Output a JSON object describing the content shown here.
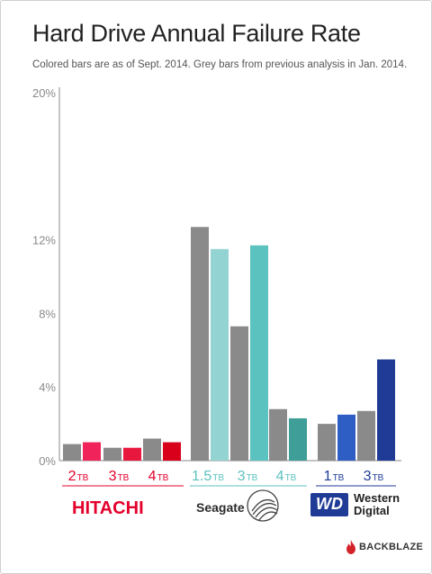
{
  "title": "Hard Drive Annual Failure Rate",
  "subtitle": "Colored bars are as of Sept. 2014. Grey bars from previous analysis in Jan. 2014.",
  "brands": {
    "hitachi": "HITACHI",
    "seagate": "Seagate",
    "wd_logo": "WD",
    "wd_name_line1": "Western",
    "wd_name_line2": "Digital",
    "backblaze": "BACKBLAZE"
  },
  "colors": {
    "grey": "#8a8a8a",
    "hitachi": "#e4002b",
    "seagate": "#5cc2bf",
    "wd": "#1f3b96",
    "axis": "#888888"
  },
  "chart_data": {
    "type": "bar",
    "title": "Hard Drive Annual Failure Rate",
    "subtitle": "Colored bars are as of Sept. 2014. Grey bars from previous analysis in Jan. 2014.",
    "ylim": [
      0,
      20
    ],
    "y_ticks": [
      {
        "value": 0,
        "label": "0%"
      },
      {
        "value": 4,
        "label": "4%"
      },
      {
        "value": 8,
        "label": "8%"
      },
      {
        "value": 12,
        "label": "12%"
      },
      {
        "value": 20,
        "label": "20%"
      }
    ],
    "grid": false,
    "groups": [
      {
        "brand": "HITACHI",
        "color_key": "hitachi",
        "categories": [
          {
            "size": "2",
            "unit": "TB",
            "jan_2014": 0.9,
            "sept_2014": 1.0,
            "color": "#f0245a"
          },
          {
            "size": "3",
            "unit": "TB",
            "jan_2014": 0.7,
            "sept_2014": 0.7,
            "color": "#e8173d"
          },
          {
            "size": "4",
            "unit": "TB",
            "jan_2014": 1.2,
            "sept_2014": 1.0,
            "color": "#d9001c"
          }
        ]
      },
      {
        "brand": "Seagate",
        "color_key": "seagate",
        "categories": [
          {
            "size": "1.5",
            "unit": "TB",
            "jan_2014": 12.7,
            "sept_2014": 11.5,
            "color": "#93d3d1"
          },
          {
            "size": "3",
            "unit": "TB",
            "jan_2014": 7.3,
            "sept_2014": 11.7,
            "color": "#5cc2bf"
          },
          {
            "size": "4",
            "unit": "TB",
            "jan_2014": 2.8,
            "sept_2014": 2.3,
            "color": "#3f9e98"
          }
        ]
      },
      {
        "brand": "Western Digital",
        "color_key": "wd",
        "categories": [
          {
            "size": "1",
            "unit": "TB",
            "jan_2014": 2.0,
            "sept_2014": 2.5,
            "color": "#2e5ec4"
          },
          {
            "size": "3",
            "unit": "TB",
            "jan_2014": 2.7,
            "sept_2014": 5.5,
            "color": "#1f3b96"
          }
        ]
      }
    ]
  }
}
